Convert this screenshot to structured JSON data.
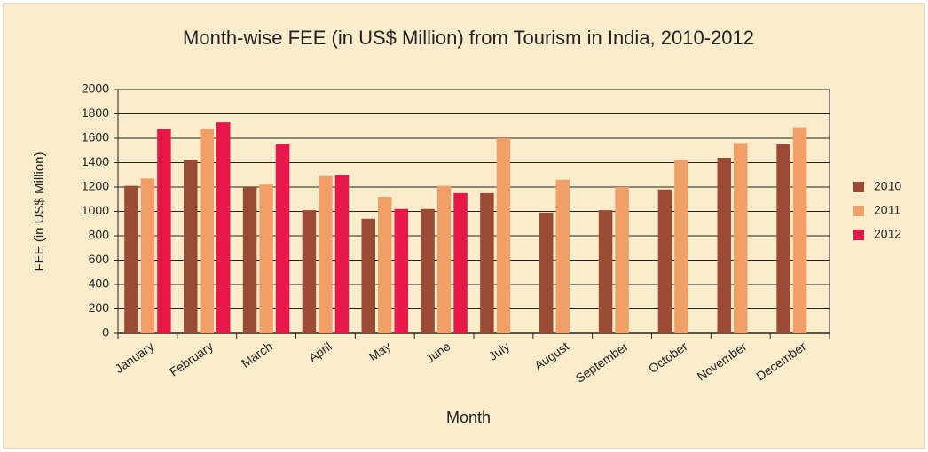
{
  "chart_data": {
    "type": "bar",
    "title": "Month-wise FEE (in US$ Million) from Tourism in India, 2010-2012",
    "x_label": "Month",
    "y_label": "FEE (in US$ Million)",
    "categories": [
      "January",
      "February",
      "March",
      "April",
      "May",
      "June",
      "July",
      "August",
      "September",
      "October",
      "November",
      "December"
    ],
    "series": [
      {
        "name": "2010",
        "color": "#9b4a33",
        "values": [
          1210,
          1420,
          1200,
          1010,
          940,
          1020,
          1150,
          990,
          1010,
          1180,
          1440,
          1550
        ]
      },
      {
        "name": "2011",
        "color": "#f0a066",
        "values": [
          1270,
          1680,
          1220,
          1290,
          1120,
          1210,
          1600,
          1260,
          1200,
          1420,
          1560,
          1690
        ]
      },
      {
        "name": "2012",
        "color": "#e8174a",
        "values": [
          1680,
          1730,
          1550,
          1300,
          1020,
          1150,
          null,
          null,
          null,
          null,
          null,
          null
        ]
      }
    ],
    "ylim": [
      0,
      2000
    ],
    "yticks": [
      0,
      200,
      400,
      600,
      800,
      1000,
      1200,
      1400,
      1600,
      1800,
      2000
    ],
    "grid": true,
    "legend": "right"
  }
}
